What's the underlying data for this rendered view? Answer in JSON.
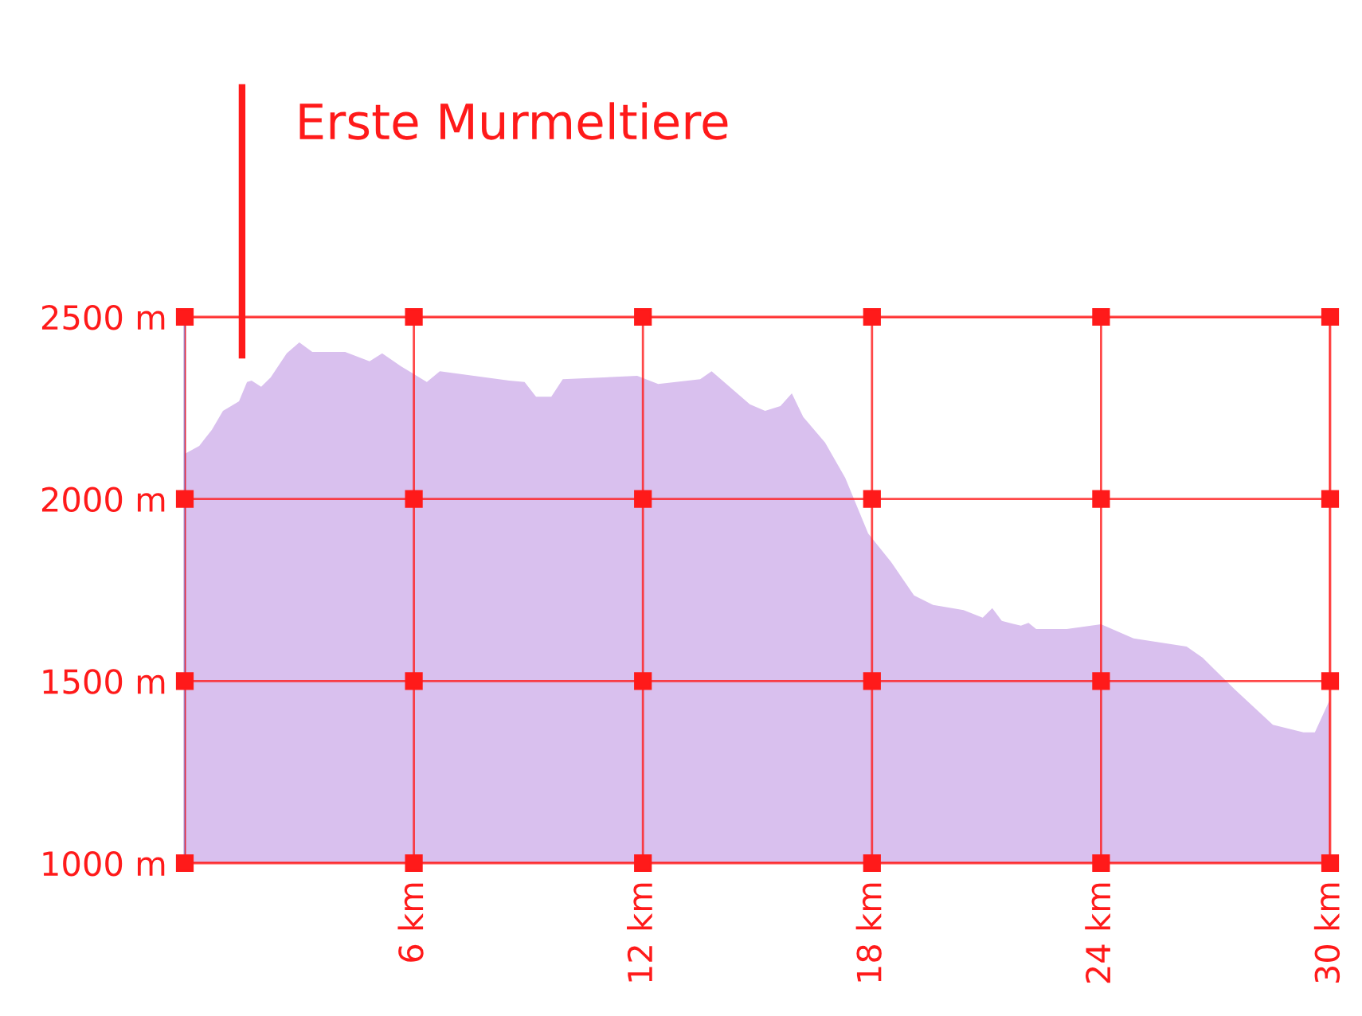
{
  "chart_data": {
    "type": "area",
    "x": [
      0,
      0.38,
      0.71,
      1.0,
      1.42,
      1.63,
      1.75,
      2.0,
      2.25,
      2.67,
      3.0,
      3.34,
      4.2,
      4.84,
      5.17,
      5.67,
      6.34,
      6.68,
      8.5,
      8.9,
      9.2,
      9.6,
      9.9,
      11.85,
      12.4,
      13.5,
      13.8,
      14.8,
      15.2,
      15.6,
      15.9,
      16.2,
      16.77,
      17.3,
      17.9,
      18.5,
      19.1,
      19.6,
      20.4,
      20.9,
      21.15,
      21.4,
      21.9,
      22.1,
      22.3,
      23.1,
      24.0,
      24.85,
      26.24,
      26.66,
      27.5,
      28.5,
      29.3,
      29.6,
      30
    ],
    "series": [
      {
        "color": "#d9c0ee",
        "values": [
          2124,
          2146,
          2190,
          2242,
          2268,
          2321,
          2325,
          2308,
          2334,
          2400,
          2430,
          2404,
          2404,
          2378,
          2400,
          2364,
          2321,
          2351,
          2325,
          2321,
          2281,
          2281,
          2329,
          2338,
          2316,
          2329,
          2351,
          2260,
          2242,
          2255,
          2290,
          2225,
          2155,
          2058,
          1905,
          1827,
          1735,
          1709,
          1695,
          1674,
          1700,
          1665,
          1652,
          1660,
          1643,
          1643,
          1656,
          1617,
          1595,
          1564,
          1477,
          1380,
          1359,
          1359,
          1451
        ]
      }
    ],
    "xlim": [
      0,
      30
    ],
    "xticks": [
      {
        "value": 0,
        "label": null
      },
      {
        "value": 6,
        "label": "6 km"
      },
      {
        "value": 12,
        "label": "12 km"
      },
      {
        "value": 18,
        "label": "18 km"
      },
      {
        "value": 24,
        "label": "24 km"
      },
      {
        "value": 30,
        "label": "30 km"
      }
    ],
    "ylim": [
      1000,
      2500
    ],
    "yticks": [
      {
        "value": 1000,
        "label": "1000 m"
      },
      {
        "value": 1500,
        "label": "1500 m"
      },
      {
        "value": 2000,
        "label": "2000 m"
      },
      {
        "value": 2500,
        "label": "2500 m"
      }
    ],
    "grid": true,
    "ref_lines": [
      {
        "axis": "x",
        "value": 1.5,
        "label": "Erste Murmeltiere",
        "color": "#ff1a1a"
      }
    ]
  }
}
